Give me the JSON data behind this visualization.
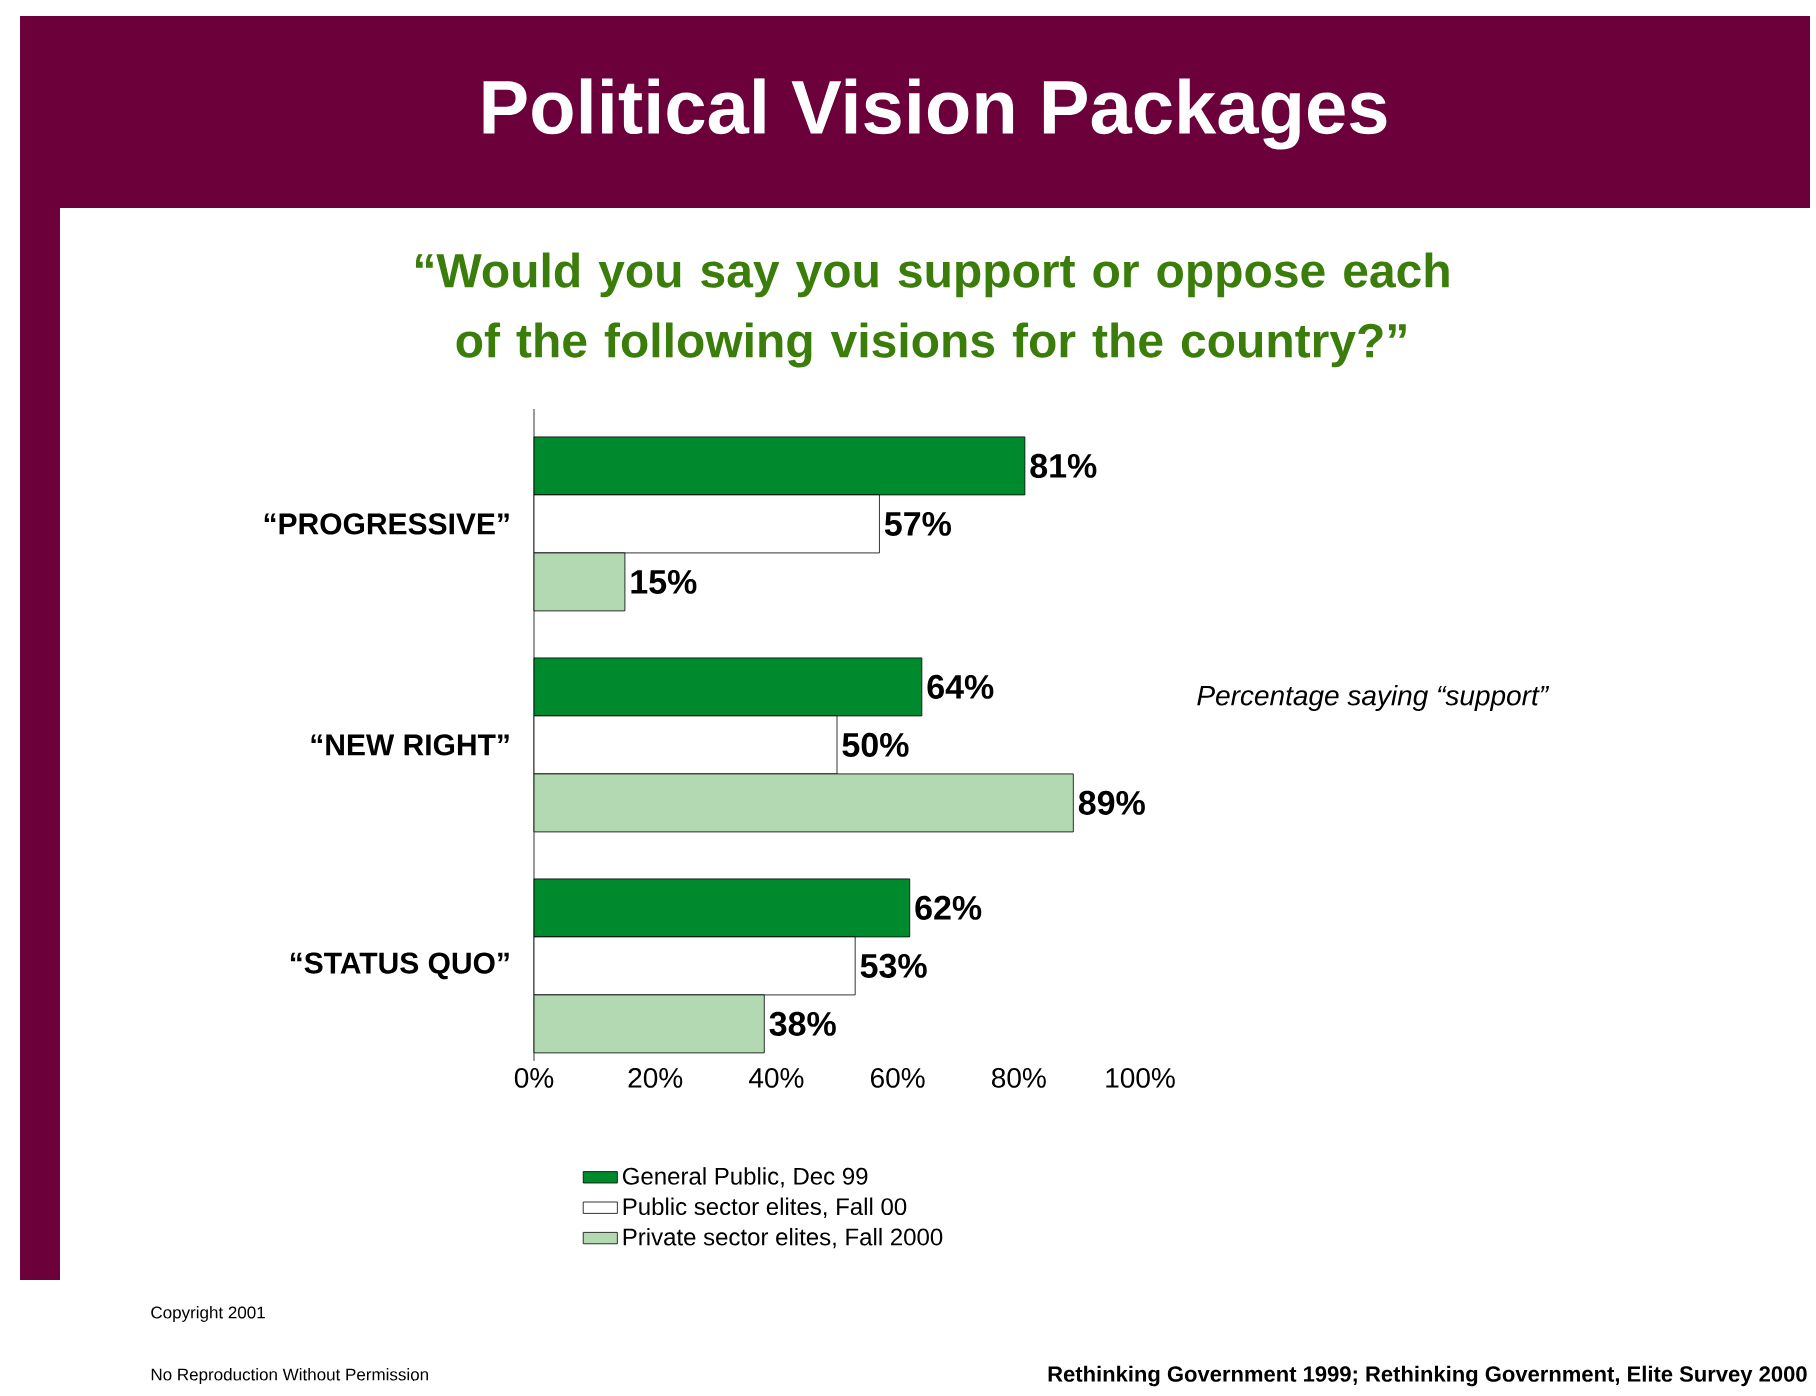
{
  "chart_data": {
    "type": "bar",
    "orientation": "horizontal",
    "title": "Political Vision Packages",
    "subtitle": "“Would you say you support or oppose each of the following visions for the country?”",
    "categories": [
      "“PROGRESSIVE”",
      "“NEW RIGHT”",
      "“STATUS QUO”"
    ],
    "series": [
      {
        "name": "General Public, Dec 99",
        "color": "#008a2e",
        "values": [
          81,
          64,
          62
        ],
        "value_labels": [
          "81%",
          "64%",
          "62%"
        ]
      },
      {
        "name": "Public sector elites, Fall 00",
        "color": "#ffffff",
        "values": [
          57,
          50,
          53
        ],
        "value_labels": [
          "57%",
          "50%",
          "53%"
        ]
      },
      {
        "name": "Private sector elites, Fall 2000",
        "color": "#b3d9b3",
        "values": [
          15,
          89,
          38
        ],
        "value_labels": [
          "15%",
          "89%",
          "38%"
        ]
      }
    ],
    "xlim": [
      0,
      100
    ],
    "xticks": [
      {
        "value": 0,
        "label": "0%"
      },
      {
        "value": 20,
        "label": "20%"
      },
      {
        "value": 40,
        "label": "40%"
      },
      {
        "value": 60,
        "label": "60%"
      },
      {
        "value": 80,
        "label": "80%"
      },
      {
        "value": 100,
        "label": "100%"
      }
    ],
    "legend": "bottom",
    "annotations": [
      "Percentage saying “support”",
      "Copyright 2001",
      "No Reproduction Without Permission",
      "Rethinking Government 1999; Rethinking Government, Elite Survey 2000"
    ]
  }
}
